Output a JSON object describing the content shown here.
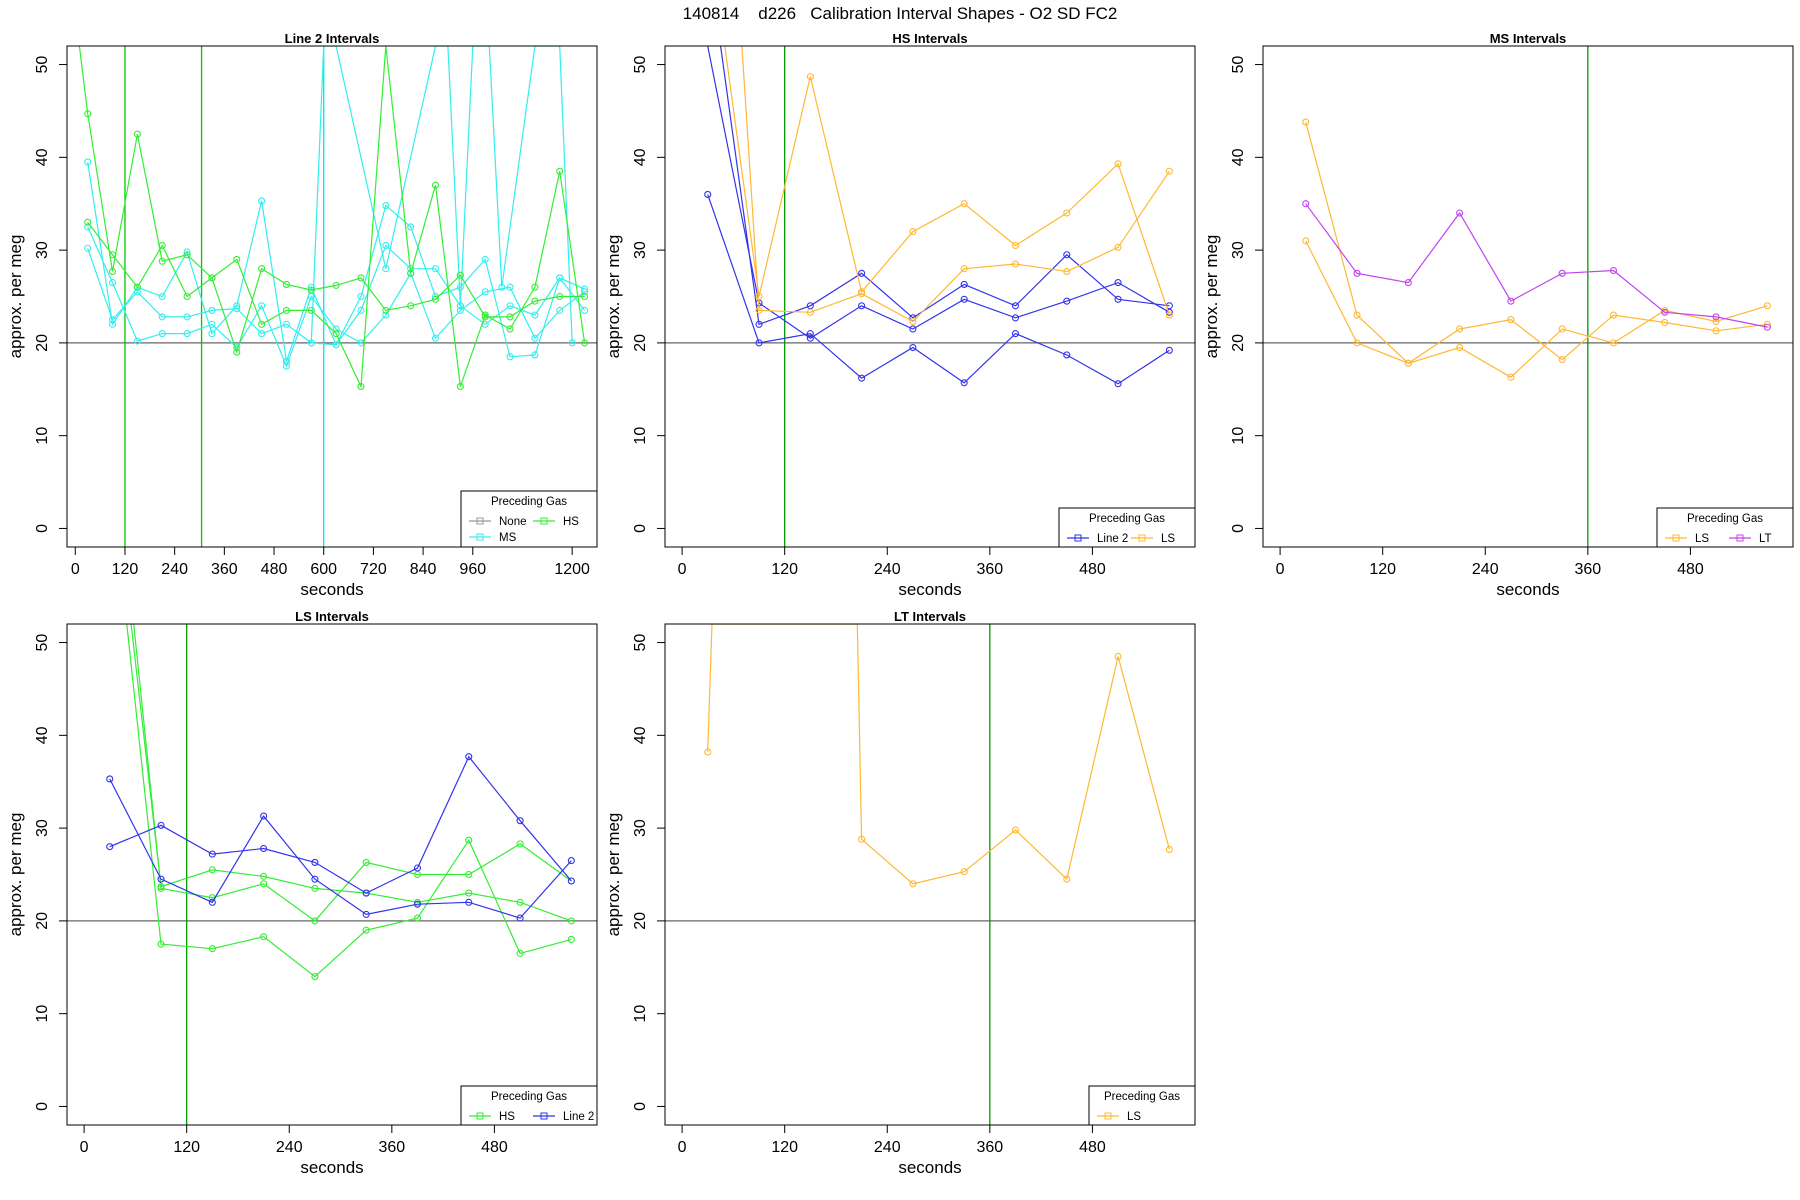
{
  "figure_title": "140814    d226   Calibration Interval Shapes - O2 SD FC2",
  "chart_data": [
    {
      "type": "line",
      "title": "Line 2 Intervals",
      "xlabel": "seconds",
      "ylabel": "approx. per meg",
      "xlim": [
        -20,
        1260
      ],
      "ylim": [
        -2,
        52
      ],
      "xticks": [
        0,
        120,
        240,
        360,
        480,
        600,
        720,
        840,
        960,
        1200
      ],
      "yticks": [
        0,
        10,
        20,
        30,
        40,
        50
      ],
      "hline": 20,
      "vlines": [
        {
          "x": 120,
          "color": "#00c800"
        },
        {
          "x": 305,
          "color": "#00c800"
        },
        {
          "x": 600,
          "color": "#00e5e5"
        }
      ],
      "legend": {
        "title": "Preceding Gas",
        "position": "bottom-right",
        "entries": [
          {
            "label": "None",
            "color": "#9a9a9a"
          },
          {
            "label": "HS",
            "color": "#33ee33"
          },
          {
            "label": "MS",
            "color": "#33eeee"
          }
        ]
      },
      "series": [
        {
          "name": "MS",
          "color": "#33eeee",
          "x": [
            30,
            90,
            150,
            210,
            270,
            330,
            390,
            450,
            510,
            570,
            630,
            690,
            750,
            810,
            870,
            930,
            990,
            1050,
            1110,
            1170,
            1230
          ],
          "y": [
            39.5,
            22.0,
            26.0,
            25.0,
            29.8,
            21.0,
            24.0,
            35.3,
            18.0,
            26.0,
            19.8,
            25.0,
            34.8,
            32.5,
            25.0,
            26.0,
            29.0,
            18.5,
            18.7,
            27.0,
            23.5
          ]
        },
        {
          "name": "MS",
          "color": "#33eeee",
          "x": [
            30,
            90,
            150,
            210,
            270,
            330,
            390,
            450,
            510,
            570,
            630,
            690,
            750,
            810,
            870,
            930,
            990,
            1050,
            1110,
            1170,
            1230
          ],
          "y": [
            32.5,
            26.5,
            20.2,
            21.0,
            21.0,
            22.0,
            19.5,
            24.0,
            17.5,
            25.0,
            21.5,
            20.0,
            23.0,
            27.5,
            20.5,
            23.5,
            25.5,
            26.0,
            20.5,
            23.5,
            25.5
          ]
        },
        {
          "name": "MS",
          "color": "#33eeee",
          "x": [
            30,
            90,
            150,
            210,
            270,
            330,
            390,
            450,
            510,
            570,
            630,
            690,
            750,
            810,
            870,
            930,
            990,
            1050,
            1110,
            1170,
            1230
          ],
          "y": [
            30.2,
            22.5,
            25.5,
            22.8,
            22.8,
            23.5,
            23.7,
            21.0,
            22.0,
            20.0,
            19.8,
            23.5,
            30.5,
            28.0,
            28.0,
            24.0,
            22.0,
            24.0,
            23.0,
            27.0,
            25.8
          ]
        },
        {
          "name": "MS",
          "color": "#33eeee",
          "x": [
            570,
            600,
            630,
            750,
            870,
            900,
            930,
            960,
            1000,
            1030,
            1110,
            1170,
            1200
          ],
          "y": [
            20.0,
            52,
            52,
            28.0,
            52,
            52,
            24.0,
            52,
            52,
            26.0,
            52,
            52,
            20.0
          ]
        },
        {
          "name": "HS",
          "color": "#33ee33",
          "x": [
            10,
            30,
            90,
            150,
            210,
            270,
            330,
            390,
            450,
            510,
            570,
            630,
            690,
            750,
            810,
            870,
            930,
            990,
            1050,
            1110,
            1170,
            1230
          ],
          "y": [
            52,
            44.7,
            27.7,
            42.5,
            28.8,
            29.5,
            27.0,
            19.0,
            28.0,
            26.3,
            25.7,
            26.2,
            27.0,
            23.5,
            24.0,
            24.7,
            27.3,
            22.8,
            22.8,
            24.5,
            25.0,
            25.0
          ]
        },
        {
          "name": "HS",
          "color": "#33ee33",
          "x": [
            30,
            90,
            150,
            210,
            270,
            330,
            390,
            450,
            510,
            570,
            630,
            690,
            750,
            810,
            870,
            930,
            990,
            1050,
            1110,
            1170,
            1230
          ],
          "y": [
            33.0,
            29.5,
            26.0,
            30.5,
            25.0,
            27.0,
            29.0,
            22.0,
            23.5,
            23.5,
            21.0,
            15.3,
            52,
            27.5,
            37.0,
            15.3,
            23.0,
            21.5,
            26.0,
            38.5,
            20.0
          ]
        }
      ]
    },
    {
      "type": "line",
      "title": "HS Intervals",
      "xlabel": "seconds",
      "ylabel": "approx. per meg",
      "xlim": [
        -20,
        600
      ],
      "ylim": [
        -2,
        52
      ],
      "xticks": [
        0,
        120,
        240,
        360,
        480
      ],
      "yticks": [
        0,
        10,
        20,
        30,
        40,
        50
      ],
      "hline": 20,
      "vlines": [
        {
          "x": 120,
          "color": "#009a00"
        }
      ],
      "legend": {
        "title": "Preceding Gas",
        "position": "bottom-right",
        "entries": [
          {
            "label": "Line 2",
            "color": "#3333ee"
          },
          {
            "label": "LS",
            "color": "#ffb833"
          }
        ]
      },
      "series": [
        {
          "name": "Line 2",
          "color": "#3333ee",
          "x": [
            30,
            90,
            150,
            210,
            270,
            330,
            390,
            450,
            510,
            570
          ],
          "y": [
            36.0,
            20.0,
            21.0,
            16.2,
            19.5,
            15.7,
            21.0,
            18.7,
            15.6,
            19.2
          ]
        },
        {
          "name": "Line 2",
          "color": "#3333ee",
          "x": [
            30,
            90,
            150,
            210,
            270,
            330,
            390,
            450,
            510,
            570
          ],
          "y": [
            52,
            24.3,
            20.5,
            24.0,
            21.5,
            24.7,
            22.7,
            24.5,
            26.5,
            23.3
          ]
        },
        {
          "name": "Line 2",
          "color": "#3333ee",
          "x": [
            45,
            90,
            150,
            210,
            270,
            330,
            390,
            450,
            510,
            570
          ],
          "y": [
            52,
            22.0,
            24.0,
            27.5,
            22.7,
            26.3,
            24.0,
            29.5,
            24.7,
            24.0
          ]
        },
        {
          "name": "LS",
          "color": "#ffb833",
          "x": [
            50,
            90,
            150,
            210,
            270,
            330,
            390,
            450,
            510,
            570
          ],
          "y": [
            52,
            25.0,
            48.7,
            25.5,
            32.0,
            35.0,
            30.5,
            34.0,
            39.3,
            23.0
          ]
        },
        {
          "name": "LS",
          "color": "#ffb833",
          "x": [
            70,
            90,
            150,
            210,
            270,
            330,
            390,
            450,
            510,
            570
          ],
          "y": [
            52,
            23.5,
            23.3,
            25.3,
            22.3,
            28.0,
            28.5,
            27.7,
            30.3,
            38.5
          ]
        }
      ]
    },
    {
      "type": "line",
      "title": "MS Intervals",
      "xlabel": "seconds",
      "ylabel": "approx. per meg",
      "xlim": [
        -20,
        600
      ],
      "ylim": [
        -2,
        52
      ],
      "xticks": [
        0,
        120,
        240,
        360,
        480
      ],
      "yticks": [
        0,
        10,
        20,
        30,
        40,
        50
      ],
      "hline": 20,
      "vlines": [
        {
          "x": 360,
          "color": "#009a00"
        }
      ],
      "legend": {
        "title": "Preceding Gas",
        "position": "bottom-right",
        "entries": [
          {
            "label": "LS",
            "color": "#ffb833"
          },
          {
            "label": "LT",
            "color": "#c044ee"
          }
        ]
      },
      "series": [
        {
          "name": "LS",
          "color": "#ffb833",
          "x": [
            30,
            90,
            150,
            210,
            270,
            330,
            390,
            450,
            510,
            570
          ],
          "y": [
            43.8,
            23.0,
            17.8,
            19.5,
            16.3,
            21.5,
            20.0,
            23.5,
            22.3,
            24.0
          ]
        },
        {
          "name": "LS",
          "color": "#ffb833",
          "x": [
            30,
            90,
            150,
            210,
            270,
            330,
            390,
            450,
            510,
            570
          ],
          "y": [
            31.0,
            20.0,
            17.8,
            21.5,
            22.5,
            18.2,
            23.0,
            22.2,
            21.3,
            22.0
          ]
        },
        {
          "name": "LT",
          "color": "#c044ee",
          "x": [
            30,
            90,
            150,
            210,
            270,
            330,
            390,
            450,
            510,
            570
          ],
          "y": [
            35.0,
            27.5,
            26.5,
            34.0,
            24.5,
            27.5,
            27.8,
            23.3,
            22.8,
            21.7
          ]
        }
      ]
    },
    {
      "type": "line",
      "title": "LS Intervals",
      "xlabel": "seconds",
      "ylabel": "approx. per meg",
      "xlim": [
        -20,
        600
      ],
      "ylim": [
        -2,
        52
      ],
      "xticks": [
        0,
        120,
        240,
        360,
        480
      ],
      "yticks": [
        0,
        10,
        20,
        30,
        40,
        50
      ],
      "hline": 20,
      "vlines": [
        {
          "x": 120,
          "color": "#009a00"
        }
      ],
      "legend": {
        "title": "Preceding Gas",
        "position": "bottom-right",
        "entries": [
          {
            "label": "HS",
            "color": "#33ee33"
          },
          {
            "label": "Line 2",
            "color": "#3333ee"
          }
        ]
      },
      "series": [
        {
          "name": "HS",
          "color": "#33ee33",
          "x": [
            50,
            90,
            150,
            210,
            270,
            330,
            390,
            450,
            510,
            570
          ],
          "y": [
            52,
            17.5,
            17.0,
            18.3,
            14.0,
            19.0,
            20.3,
            28.7,
            16.5,
            18.0
          ]
        },
        {
          "name": "HS",
          "color": "#33ee33",
          "x": [
            55,
            90,
            150,
            210,
            270,
            330,
            390,
            450,
            510,
            570
          ],
          "y": [
            52,
            23.7,
            25.5,
            24.8,
            23.5,
            23.0,
            22.0,
            23.0,
            22.0,
            20.0
          ]
        },
        {
          "name": "HS",
          "color": "#33ee33",
          "x": [
            58,
            90,
            150,
            210,
            270,
            330,
            390,
            450,
            510,
            570
          ],
          "y": [
            52,
            23.5,
            22.5,
            24.0,
            20.0,
            26.3,
            25.0,
            25.0,
            28.3,
            24.3
          ]
        },
        {
          "name": "Line 2",
          "color": "#3333ee",
          "x": [
            30,
            90,
            150,
            210,
            270,
            330,
            390,
            450,
            510,
            570
          ],
          "y": [
            35.3,
            24.5,
            22.0,
            31.3,
            24.5,
            20.7,
            21.8,
            22.0,
            20.3,
            26.5
          ]
        },
        {
          "name": "Line 2",
          "color": "#3333ee",
          "x": [
            30,
            90,
            150,
            210,
            270,
            330,
            390,
            450,
            510,
            570
          ],
          "y": [
            28.0,
            30.3,
            27.2,
            27.8,
            26.3,
            23.0,
            25.7,
            37.7,
            30.8,
            24.3
          ]
        }
      ]
    },
    {
      "type": "line",
      "title": "LT Intervals",
      "xlabel": "seconds",
      "ylabel": "approx. per meg",
      "xlim": [
        -20,
        600
      ],
      "ylim": [
        -2,
        52
      ],
      "xticks": [
        0,
        120,
        240,
        360,
        480
      ],
      "yticks": [
        0,
        10,
        20,
        30,
        40,
        50
      ],
      "hline": 20,
      "vlines": [
        {
          "x": 360,
          "color": "#009a00"
        }
      ],
      "legend": {
        "title": "Preceding Gas",
        "position": "bottom-right",
        "entries": [
          {
            "label": "LS",
            "color": "#ffb833"
          }
        ]
      },
      "series": [
        {
          "name": "LS",
          "color": "#ffb833",
          "x": [
            30,
            35,
            205,
            210,
            270,
            330,
            390,
            450,
            510,
            570
          ],
          "y": [
            38.2,
            52,
            52,
            28.8,
            24.0,
            25.3,
            29.8,
            24.5,
            48.5,
            27.7
          ]
        }
      ]
    }
  ]
}
